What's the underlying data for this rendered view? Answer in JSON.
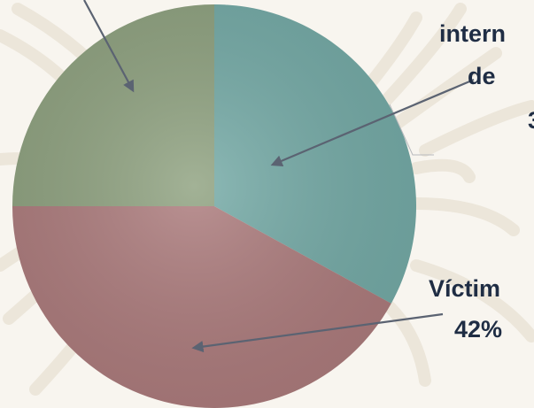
{
  "chart_data": {
    "type": "pie",
    "slices": [
      {
        "label_lines": [
          "intern",
          "de",
          "3"
        ],
        "value": 33,
        "color": "#74aaa6"
      },
      {
        "label_lines": [
          "Víctim",
          "42%"
        ],
        "value": 42,
        "color": "#ac7b7c"
      },
      {
        "label_lines": [],
        "value": 25,
        "color": "#8ea17f"
      }
    ],
    "start_angle_deg": 0,
    "direction": "clockwise",
    "legend": "none"
  },
  "colors": {
    "background": "#f8f5ef",
    "leaf_pattern": "#e7e0d2",
    "arrow": "#5b6372",
    "label_text": "#1f2d44"
  }
}
